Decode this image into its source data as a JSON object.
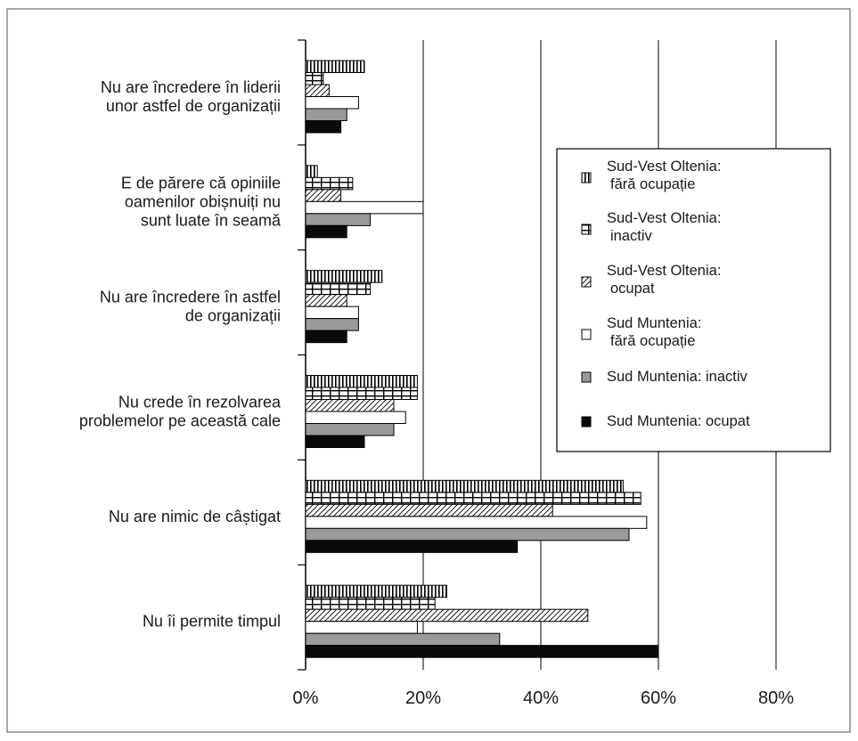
{
  "chart_data": {
    "type": "bar",
    "orientation": "horizontal",
    "title": "",
    "xlabel": "",
    "ylabel": "",
    "xlim": [
      0,
      80
    ],
    "x_ticks": [
      "0%",
      "20%",
      "40%",
      "60%",
      "80%"
    ],
    "x_tick_values": [
      0,
      20,
      40,
      60,
      80
    ],
    "unit": "%",
    "grid": "vertical gridlines at each 20% tick",
    "legend_placement": "right",
    "categories": [
      [
        "Nu are încredere în liderii",
        "unor astfel de organizații"
      ],
      [
        "E de părere că opiniile",
        "oamenilor obișnuiți nu",
        "sunt luate în seamă"
      ],
      [
        "Nu are încredere în astfel",
        "de organizații"
      ],
      [
        "Nu crede în rezolvarea",
        "problemelor pe această cale"
      ],
      [
        "Nu are nimic de câștigat"
      ],
      [
        "Nu îi permite timpul"
      ]
    ],
    "series": [
      {
        "name": [
          "Sud-Vest Oltenia:",
          "fără ocupație"
        ],
        "pattern": "vertical-lines",
        "values": [
          10,
          2,
          13,
          19,
          54,
          24
        ]
      },
      {
        "name": [
          "Sud-Vest Oltenia:",
          "inactiv"
        ],
        "pattern": "grid",
        "values": [
          3,
          8,
          11,
          19,
          57,
          22
        ]
      },
      {
        "name": [
          "Sud-Vest Oltenia:",
          "ocupat"
        ],
        "pattern": "diagonal-hatch",
        "values": [
          4,
          6,
          7,
          15,
          42,
          48
        ]
      },
      {
        "name": [
          "Sud Muntenia:",
          "fără ocupație"
        ],
        "pattern": "white",
        "values": [
          9,
          20,
          9,
          17,
          58,
          19
        ]
      },
      {
        "name": [
          "Sud Muntenia: inactiv"
        ],
        "pattern": "gray",
        "values": [
          7,
          11,
          9,
          15,
          55,
          33
        ]
      },
      {
        "name": [
          "Sud Muntenia: ocupat"
        ],
        "pattern": "black",
        "values": [
          6,
          7,
          7,
          10,
          36,
          60
        ]
      }
    ],
    "colors": {
      "gray_fill": "#9a9a9a",
      "black_fill": "#0a0a0a",
      "frame": "#888888"
    }
  }
}
